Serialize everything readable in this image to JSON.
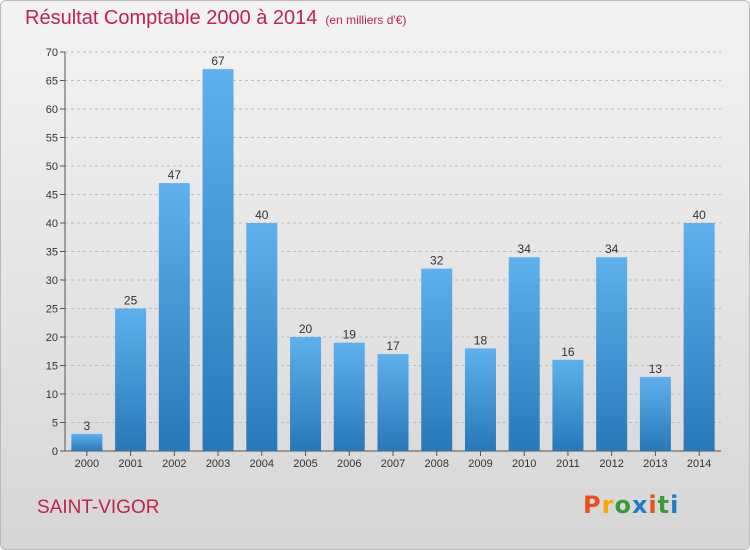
{
  "title": "Résultat Comptable 2000 à 2014",
  "unit_note": "(en milliers d'€)",
  "commune": "SAINT-VIGOR",
  "logo": {
    "text": "Proxiti",
    "colors": [
      "#e8501e",
      "#f7a600",
      "#3c9a3c",
      "#1f7fc6",
      "#e8501e",
      "#3c9a3c",
      "#1f7fc6"
    ]
  },
  "colors": {
    "bar_top": "#5eb1ec",
    "bar_bottom": "#2878b9",
    "title": "#c0224f",
    "grid": "#bdbdbd"
  },
  "chart_data": {
    "type": "bar",
    "title": "Résultat Comptable 2000 à 2014",
    "xlabel": "",
    "ylabel": "",
    "ylim": [
      0,
      70
    ],
    "yticks": [
      0,
      5,
      10,
      15,
      20,
      25,
      30,
      35,
      40,
      45,
      50,
      55,
      60,
      65,
      70
    ],
    "grid": true,
    "categories": [
      "2000",
      "2001",
      "2002",
      "2003",
      "2004",
      "2005",
      "2006",
      "2007",
      "2008",
      "2009",
      "2010",
      "2011",
      "2012",
      "2013",
      "2014"
    ],
    "values": [
      3,
      25,
      47,
      67,
      40,
      20,
      19,
      17,
      32,
      18,
      34,
      16,
      34,
      13,
      40
    ]
  }
}
